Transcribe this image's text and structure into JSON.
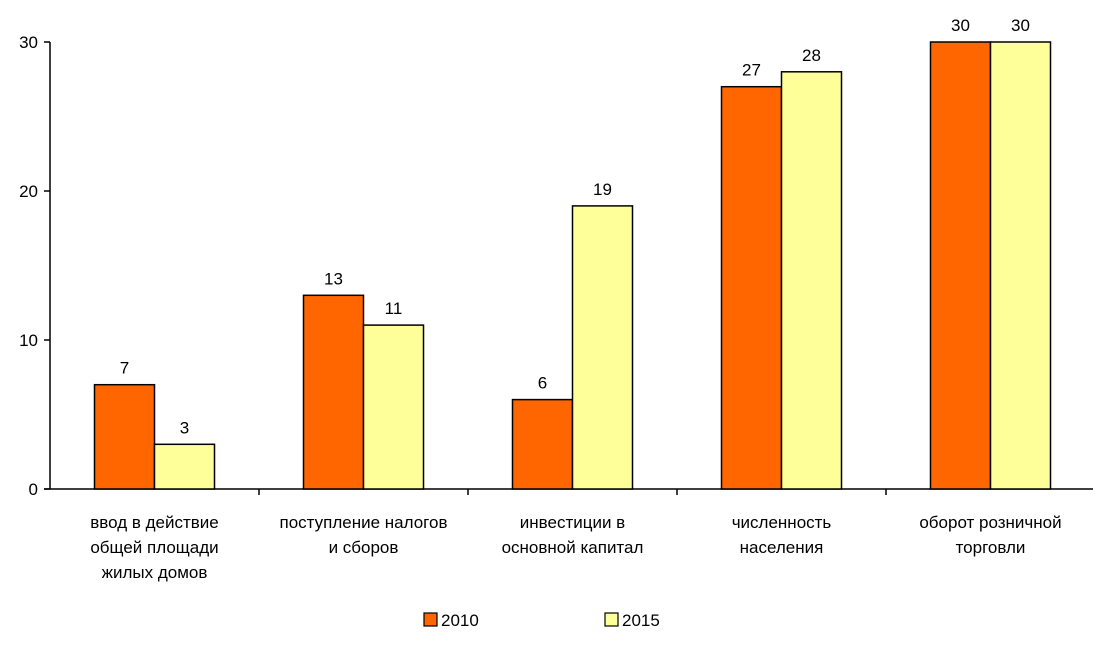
{
  "chart_data": {
    "type": "bar",
    "categories": [
      [
        "ввод в действие",
        "общей площади",
        "жилых домов"
      ],
      [
        "поступление налогов",
        "и сборов"
      ],
      [
        "инвестиции в",
        "основной капитал"
      ],
      [
        "численность",
        "населения"
      ],
      [
        "оборот розничной",
        "торговли"
      ]
    ],
    "series": [
      {
        "name": "2010",
        "color": "#ff6600",
        "values": [
          7,
          13,
          6,
          27,
          30
        ]
      },
      {
        "name": "2015",
        "color": "#ffff99",
        "values": [
          3,
          11,
          19,
          28,
          30
        ]
      }
    ],
    "y_ticks": [
      0,
      10,
      20,
      30
    ],
    "ylim": [
      0,
      30
    ],
    "grid": false,
    "legend_position": "bottom",
    "bar_outline_color": "#000000"
  }
}
